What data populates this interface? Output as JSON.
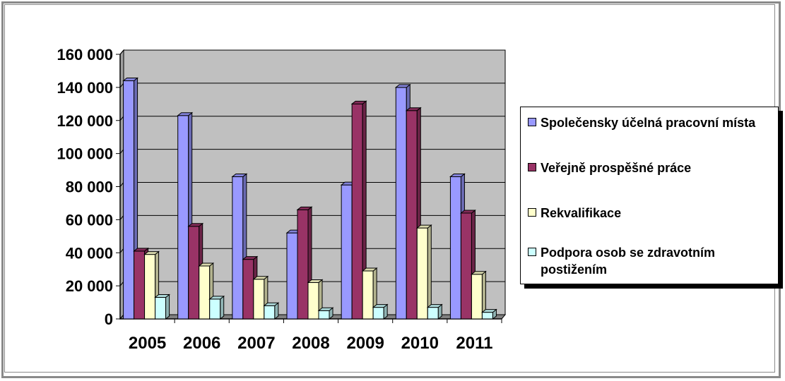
{
  "chart_data": {
    "type": "bar",
    "categories": [
      "2005",
      "2006",
      "2007",
      "2008",
      "2009",
      "2010",
      "2011"
    ],
    "series": [
      {
        "name": "Společensky účelná pracovní místa",
        "values": [
          144000,
          123000,
          86000,
          52000,
          81000,
          140000,
          86000
        ]
      },
      {
        "name": "Veřejně prospěšné práce",
        "values": [
          41000,
          56000,
          36000,
          66000,
          130000,
          126000,
          64000
        ]
      },
      {
        "name": "Rekvalifikace",
        "values": [
          39000,
          32000,
          24000,
          22000,
          29000,
          55000,
          27000
        ]
      },
      {
        "name": "Podpora osob se zdravotním postižením",
        "values": [
          13000,
          12000,
          8000,
          5000,
          7000,
          7000,
          4000
        ]
      }
    ],
    "yticks": [
      0,
      20000,
      40000,
      60000,
      80000,
      100000,
      120000,
      140000,
      160000
    ],
    "ytick_labels": [
      "0",
      "20 000",
      "40 000",
      "60 000",
      "80 000",
      "100 000",
      "120 000",
      "140 000",
      "160 000"
    ],
    "ylim": [
      0,
      160000
    ],
    "grid": true,
    "legend_position": "right",
    "title": "",
    "xlabel": "",
    "ylabel": "",
    "colors": {
      "series_fill": [
        "#9999ff",
        "#993366",
        "#ffffcc",
        "#ccffff"
      ],
      "plot_background": "#c0c0c0"
    }
  }
}
